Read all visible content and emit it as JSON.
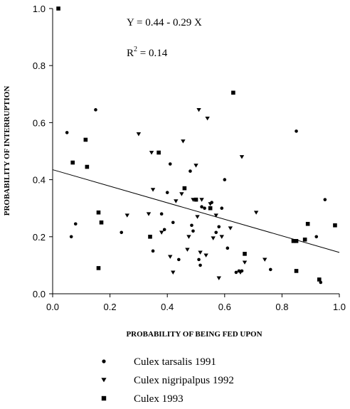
{
  "chart_data": {
    "type": "scatter",
    "xlabel": "PROBABILITY OF BEING FED UPON",
    "ylabel": "PROBABILITY OF INTERRUPTION",
    "xlim": [
      0,
      1
    ],
    "ylim": [
      0,
      1
    ],
    "x_ticks": [
      "0.0",
      "0.2",
      "0.4",
      "0.6",
      "0.8",
      "1.0"
    ],
    "y_ticks": [
      "0.0",
      "0.2",
      "0.4",
      "0.6",
      "0.8",
      "1.0"
    ],
    "grid": false,
    "legend_position": "bottom",
    "annotations": {
      "equation": "Y = 0.44 - 0.29 X",
      "r2_base": "R",
      "r2_exp": "2",
      "r2_rest": " = 0.14"
    },
    "regression_line": {
      "x": [
        0,
        1
      ],
      "y": [
        0.435,
        0.145
      ]
    },
    "series": [
      {
        "name": "Culex tarsalis 1991",
        "marker": "circle",
        "points": [
          [
            0.05,
            0.565
          ],
          [
            0.065,
            0.2
          ],
          [
            0.08,
            0.245
          ],
          [
            0.15,
            0.645
          ],
          [
            0.24,
            0.215
          ],
          [
            0.35,
            0.15
          ],
          [
            0.38,
            0.28
          ],
          [
            0.39,
            0.225
          ],
          [
            0.4,
            0.355
          ],
          [
            0.41,
            0.455
          ],
          [
            0.42,
            0.25
          ],
          [
            0.44,
            0.12
          ],
          [
            0.48,
            0.43
          ],
          [
            0.485,
            0.24
          ],
          [
            0.49,
            0.22
          ],
          [
            0.51,
            0.12
          ],
          [
            0.515,
            0.1
          ],
          [
            0.52,
            0.305
          ],
          [
            0.53,
            0.3
          ],
          [
            0.555,
            0.32
          ],
          [
            0.57,
            0.215
          ],
          [
            0.58,
            0.235
          ],
          [
            0.59,
            0.3
          ],
          [
            0.6,
            0.4
          ],
          [
            0.61,
            0.16
          ],
          [
            0.64,
            0.075
          ],
          [
            0.65,
            0.08
          ],
          [
            0.66,
            0.08
          ],
          [
            0.76,
            0.085
          ],
          [
            0.85,
            0.57
          ],
          [
            0.92,
            0.2
          ],
          [
            0.935,
            0.04
          ],
          [
            0.95,
            0.33
          ]
        ]
      },
      {
        "name": "Culex nigripalpus 1992",
        "marker": "triangle-down",
        "points": [
          [
            0.26,
            0.275
          ],
          [
            0.3,
            0.56
          ],
          [
            0.335,
            0.28
          ],
          [
            0.345,
            0.495
          ],
          [
            0.35,
            0.365
          ],
          [
            0.38,
            0.215
          ],
          [
            0.41,
            0.13
          ],
          [
            0.42,
            0.075
          ],
          [
            0.43,
            0.325
          ],
          [
            0.45,
            0.35
          ],
          [
            0.455,
            0.535
          ],
          [
            0.47,
            0.155
          ],
          [
            0.475,
            0.2
          ],
          [
            0.49,
            0.33
          ],
          [
            0.5,
            0.45
          ],
          [
            0.505,
            0.27
          ],
          [
            0.51,
            0.645
          ],
          [
            0.515,
            0.145
          ],
          [
            0.52,
            0.33
          ],
          [
            0.535,
            0.135
          ],
          [
            0.54,
            0.615
          ],
          [
            0.55,
            0.315
          ],
          [
            0.56,
            0.195
          ],
          [
            0.57,
            0.275
          ],
          [
            0.58,
            0.055
          ],
          [
            0.59,
            0.2
          ],
          [
            0.62,
            0.23
          ],
          [
            0.655,
            0.075
          ],
          [
            0.66,
            0.48
          ],
          [
            0.67,
            0.11
          ],
          [
            0.71,
            0.285
          ],
          [
            0.74,
            0.12
          ]
        ]
      },
      {
        "name": "Culex 1993",
        "marker": "square",
        "points": [
          [
            0.02,
            1.0
          ],
          [
            0.07,
            0.46
          ],
          [
            0.115,
            0.54
          ],
          [
            0.12,
            0.445
          ],
          [
            0.16,
            0.285
          ],
          [
            0.16,
            0.09
          ],
          [
            0.17,
            0.25
          ],
          [
            0.34,
            0.2
          ],
          [
            0.37,
            0.495
          ],
          [
            0.46,
            0.37
          ],
          [
            0.5,
            0.33
          ],
          [
            0.55,
            0.3
          ],
          [
            0.63,
            0.705
          ],
          [
            0.67,
            0.14
          ],
          [
            0.84,
            0.185
          ],
          [
            0.85,
            0.185
          ],
          [
            0.85,
            0.08
          ],
          [
            0.88,
            0.19
          ],
          [
            0.89,
            0.245
          ],
          [
            0.93,
            0.05
          ],
          [
            0.985,
            0.24
          ]
        ]
      }
    ]
  }
}
